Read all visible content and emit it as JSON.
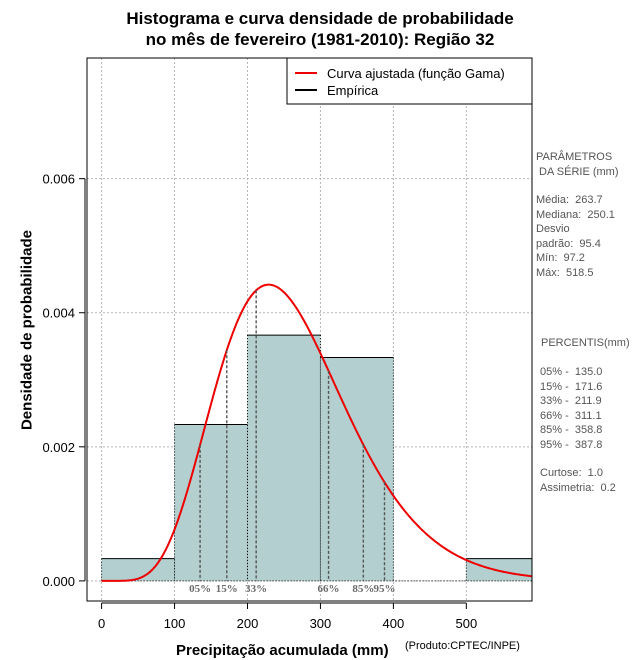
{
  "title_line1": "Histograma e curva densidade de probabilidade",
  "title_line2": "no mês de fevereiro (1981-2010): Região 32",
  "chart_data": {
    "type": "histogram",
    "xlabel": "Precipitação acumulada (mm)",
    "ylabel": "Densidade de probabilidade",
    "xlim": [
      -20,
      590
    ],
    "ylim": [
      -0.0003,
      0.0078
    ],
    "xticks": [
      "0",
      "100",
      "200",
      "300",
      "400",
      "500"
    ],
    "xtick_values": [
      0,
      100,
      200,
      300,
      400,
      500
    ],
    "yticks": [
      "0.000",
      "0.002",
      "0.004",
      "0.006"
    ],
    "ytick_values": [
      0,
      0.002,
      0.004,
      0.006
    ],
    "bins": [
      {
        "x0": 0,
        "x1": 100,
        "density": 0.000333
      },
      {
        "x0": 100,
        "x1": 200,
        "density": 0.002333
      },
      {
        "x0": 200,
        "x1": 300,
        "density": 0.003667
      },
      {
        "x0": 300,
        "x1": 400,
        "density": 0.003333
      },
      {
        "x0": 400,
        "x1": 500,
        "density": 0
      },
      {
        "x0": 500,
        "x1": 600,
        "density": 0.000333
      }
    ],
    "gamma_fit": {
      "shape": 7.6,
      "scale": 34.7
    },
    "percentile_lines": [
      {
        "label": "05%",
        "value": 135.0
      },
      {
        "label": "15%",
        "value": 171.6
      },
      {
        "label": "33%",
        "value": 211.9
      },
      {
        "label": "66%",
        "value": 311.1
      },
      {
        "label": "85%",
        "value": 358.8
      },
      {
        "label": "95%",
        "value": 387.8
      }
    ],
    "legend": [
      {
        "label": "Curva ajustada (função Gama)",
        "color": "#ee0000"
      },
      {
        "label": "Empírica",
        "color": "#000000"
      }
    ],
    "colors": {
      "bar": "#b3cfcf",
      "curve": "#ee0000",
      "percentile_text": "#6b6b6b"
    }
  },
  "side_panel": {
    "params_title": "PARÂMETROS\n DA SÉRIE (mm)",
    "params": "Média:  263.7\nMediana:  250.1\nDesvio\npadrão:  95.4\nMín:  97.2\nMáx:  518.5",
    "percentis_title": "PERCENTIS(mm)",
    "percentis": "05% -  135.0\n15% -  171.6\n33% -  211.9\n66% -  311.1\n85% -  358.8\n95% -  387.8",
    "stats": "Curtose:  1.0\nAssimetria:  0.2"
  },
  "credit": "(Produto:CPTEC/INPE)"
}
